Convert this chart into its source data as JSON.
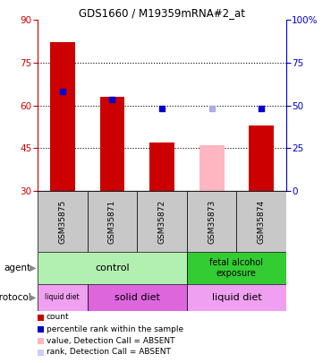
{
  "title": "GDS1660 / M19359mRNA#2_at",
  "samples": [
    "GSM35875",
    "GSM35871",
    "GSM35872",
    "GSM35873",
    "GSM35874"
  ],
  "bar_values": [
    82,
    63,
    47,
    46,
    53
  ],
  "bar_colors": [
    "#cc0000",
    "#cc0000",
    "#cc0000",
    "#ffb6c1",
    "#cc0000"
  ],
  "bar_bottom": 30,
  "dot_values": [
    65,
    62,
    59,
    59,
    59
  ],
  "dot_colors": [
    "#0000cc",
    "#0000cc",
    "#0000cc",
    "#aaaaee",
    "#0000cc"
  ],
  "left_ylim": [
    30,
    90
  ],
  "right_ylim": [
    0,
    100
  ],
  "left_yticks": [
    30,
    45,
    60,
    75,
    90
  ],
  "right_yticks": [
    0,
    25,
    50,
    75,
    100
  ],
  "right_yticklabels": [
    "0",
    "25",
    "50",
    "75",
    "100%"
  ],
  "hlines": [
    45,
    60,
    75
  ],
  "control_color": "#b2f0b2",
  "fetal_color": "#33cc33",
  "protocol_color_light": "#f0a0f0",
  "protocol_color_dark": "#dd66dd",
  "legend_items": [
    {
      "color": "#cc0000",
      "label": "count"
    },
    {
      "color": "#0000cc",
      "label": "percentile rank within the sample"
    },
    {
      "color": "#ffb6c1",
      "label": "value, Detection Call = ABSENT"
    },
    {
      "color": "#ccccff",
      "label": "rank, Detection Call = ABSENT"
    }
  ],
  "bar_width": 0.5
}
